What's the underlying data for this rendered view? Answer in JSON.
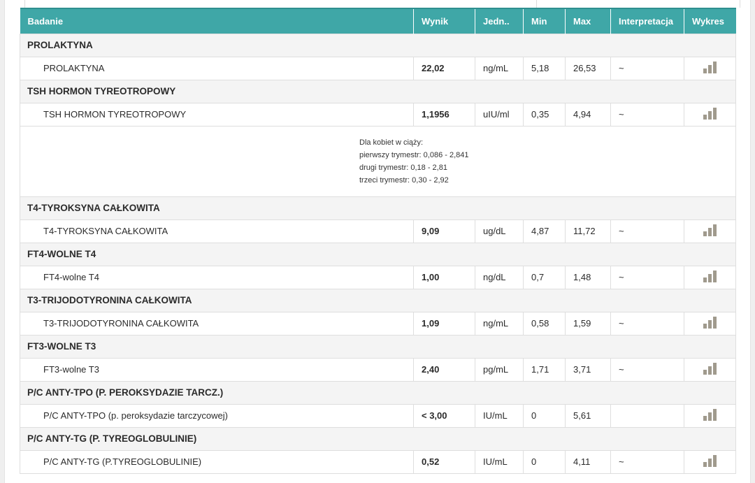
{
  "headers": {
    "badanie": "Badanie",
    "wynik": "Wynik",
    "jedn": "Jedn..",
    "min": "Min",
    "max": "Max",
    "interpretacja": "Interpretacja",
    "wykres": "Wykres"
  },
  "groups": [
    {
      "title": "PROLAKTYNA",
      "row": {
        "name": "PROLAKTYNA",
        "value": "22,02",
        "unit": "ng/mL",
        "min": "5,18",
        "max": "26,53",
        "interp": "~"
      }
    },
    {
      "title": "TSH HORMON TYREOTROPOWY",
      "row": {
        "name": "TSH HORMON TYREOTROPOWY",
        "value": "1,1956",
        "unit": "uIU/ml",
        "min": "0,35",
        "max": "4,94",
        "interp": "~"
      },
      "note": [
        "Dla kobiet w ciąży:",
        "pierwszy trymestr: 0,086 - 2,841",
        "drugi trymestr: 0,18 - 2,81",
        "trzeci trymestr: 0,30 - 2,92"
      ]
    },
    {
      "title": "T4-TYROKSYNA CAŁKOWITA",
      "row": {
        "name": "T4-TYROKSYNA CAŁKOWITA",
        "value": "9,09",
        "unit": "ug/dL",
        "min": "4,87",
        "max": "11,72",
        "interp": "~"
      }
    },
    {
      "title": "FT4-WOLNE T4",
      "row": {
        "name": "FT4-wolne T4",
        "value": "1,00",
        "unit": "ng/dL",
        "min": "0,7",
        "max": "1,48",
        "interp": "~"
      }
    },
    {
      "title": "T3-TRIJODOTYRONINA CAŁKOWITA",
      "row": {
        "name": "T3-TRIJODOTYRONINA CAŁKOWITA",
        "value": "1,09",
        "unit": "ng/mL",
        "min": "0,58",
        "max": "1,59",
        "interp": "~"
      }
    },
    {
      "title": "FT3-WOLNE T3",
      "row": {
        "name": "FT3-wolne T3",
        "value": "2,40",
        "unit": "pg/mL",
        "min": "1,71",
        "max": "3,71",
        "interp": "~"
      }
    },
    {
      "title": "P/C ANTY-TPO (P. PEROKSYDAZIE TARCZ.)",
      "row": {
        "name": "P/C ANTY-TPO (p. peroksydazie tarczycowej)",
        "value": "< 3,00",
        "unit": "IU/mL",
        "min": "0",
        "max": "5,61",
        "interp": ""
      }
    },
    {
      "title": "P/C ANTY-TG (P. TYREOGLOBULINIE)",
      "row": {
        "name": "P/C ANTY-TG (P.TYREOGLOBULINIE)",
        "value": "0,52",
        "unit": "IU/mL",
        "min": "0",
        "max": "4,11",
        "interp": "~"
      }
    }
  ],
  "icons": {
    "chart": "bar-chart-icon"
  },
  "colors": {
    "header": "#3fa7a7",
    "group_bg": "#f4f4f4",
    "chart_icon": "#a09a8d"
  }
}
